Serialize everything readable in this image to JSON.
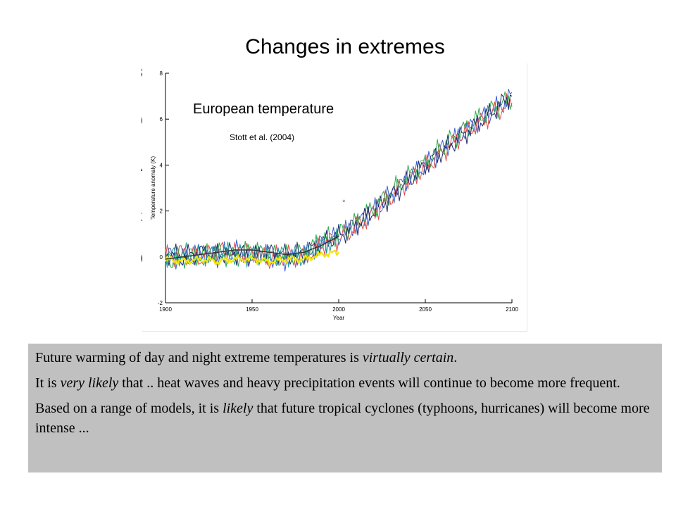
{
  "slide": {
    "title": "Changes in extremes"
  },
  "overlay_ticks": [
    "8",
    "6",
    "4",
    "2",
    "0"
  ],
  "chart_data": {
    "type": "line",
    "title": "European temperature",
    "subtitle": "Stott et al. (2004)",
    "xlabel": "Year",
    "ylabel": "Temperature anomaly (K)",
    "xlim": [
      1900,
      2100
    ],
    "ylim": [
      -2,
      8
    ],
    "x_ticks": [
      "1900",
      "1950",
      "2000",
      "2050",
      "2100"
    ],
    "y_ticks": [
      "-2",
      "0",
      "2",
      "4",
      "6",
      "8"
    ],
    "grid": false,
    "colors": {
      "observed": "#f2e600",
      "run_blue": "#3a5fcd",
      "run_red": "#e0504a",
      "run_green": "#2ea84f",
      "run_navy": "#1f2a6e",
      "run_teal": "#2a9d9a",
      "smooth": "#333333",
      "marker": "#555555"
    },
    "series": [
      {
        "key": "run_blue",
        "x": [
          1900,
          1910,
          1920,
          1930,
          1940,
          1950,
          1960,
          1970,
          1980,
          1990,
          2000,
          2010,
          2020,
          2030,
          2040,
          2050,
          2060,
          2070,
          2080,
          2090,
          2100
        ],
        "values": [
          0.1,
          -0.1,
          0.2,
          0.0,
          0.3,
          0.1,
          0.0,
          -0.1,
          0.1,
          0.6,
          0.9,
          1.4,
          2.0,
          2.7,
          3.4,
          4.0,
          4.7,
          5.3,
          5.9,
          6.4,
          7.0
        ]
      },
      {
        "key": "run_red",
        "x": [
          1900,
          1910,
          1920,
          1930,
          1940,
          1950,
          1960,
          1970,
          1980,
          1990,
          2000,
          2010,
          2020,
          2030,
          2040,
          2050,
          2060,
          2070,
          2080,
          2090,
          2100
        ],
        "values": [
          0.0,
          0.2,
          -0.1,
          0.3,
          0.1,
          0.2,
          -0.1,
          0.1,
          0.0,
          0.5,
          0.8,
          1.3,
          1.9,
          2.6,
          3.3,
          3.9,
          4.6,
          5.2,
          5.8,
          6.3,
          6.7
        ]
      },
      {
        "key": "run_green",
        "x": [
          1900,
          1910,
          1920,
          1930,
          1940,
          1950,
          1960,
          1970,
          1980,
          1990,
          2000,
          2010,
          2020,
          2030,
          2040,
          2050,
          2060,
          2070,
          2080,
          2090,
          2100
        ],
        "values": [
          -0.2,
          0.0,
          0.1,
          0.2,
          0.0,
          0.3,
          0.1,
          0.0,
          0.2,
          0.7,
          1.0,
          1.5,
          2.1,
          2.8,
          3.5,
          4.1,
          4.8,
          5.4,
          6.0,
          6.5,
          6.9
        ]
      },
      {
        "key": "run_navy",
        "x": [
          1900,
          1910,
          1920,
          1930,
          1940,
          1950,
          1960,
          1970,
          1980,
          1990,
          2000,
          2010,
          2020,
          2030,
          2040,
          2050,
          2060,
          2070,
          2080,
          2090,
          2100
        ],
        "values": [
          0.1,
          0.0,
          0.2,
          0.1,
          0.2,
          0.0,
          0.2,
          0.1,
          0.1,
          0.6,
          0.9,
          1.4,
          2.0,
          2.6,
          3.3,
          4.0,
          4.6,
          5.2,
          5.8,
          6.4,
          7.1
        ]
      },
      {
        "key": "run_teal",
        "x": [
          1900,
          1910,
          1920,
          1930,
          1940,
          1950,
          1960,
          1970,
          1980,
          1990,
          2000
        ],
        "values": [
          0.0,
          0.1,
          0.0,
          0.2,
          0.1,
          0.1,
          0.0,
          0.1,
          0.0,
          0.5,
          0.8
        ]
      },
      {
        "key": "observed",
        "x": [
          1900,
          1910,
          1920,
          1930,
          1940,
          1950,
          1960,
          1970,
          1980,
          1990,
          2000
        ],
        "values": [
          -0.1,
          -0.2,
          -0.1,
          -0.2,
          -0.1,
          -0.1,
          -0.2,
          -0.1,
          -0.1,
          0.1,
          0.2
        ]
      },
      {
        "key": "smooth",
        "x": [
          1900,
          1910,
          1920,
          1930,
          1940,
          1950,
          1960,
          1970,
          1980,
          1990,
          2000
        ],
        "values": [
          -0.1,
          0.0,
          0.1,
          0.2,
          0.3,
          0.3,
          0.2,
          0.1,
          0.2,
          0.5,
          0.9
        ]
      }
    ],
    "marker": {
      "x": 2003,
      "y": 2.4
    }
  },
  "notes": {
    "p1": {
      "a": "Future warming of day and night extreme temperatures is ",
      "b": "virtually certain",
      "c": "."
    },
    "p2": {
      "a": "It is ",
      "b": "very likely",
      "c": " that .. heat waves and heavy precipitation events will continue to become more frequent."
    },
    "p3": {
      "a": "Based on a range of models, it is ",
      "b": "likely",
      "c": " that future tropical cyclones (typhoons, hurricanes) will become more intense ..."
    }
  }
}
